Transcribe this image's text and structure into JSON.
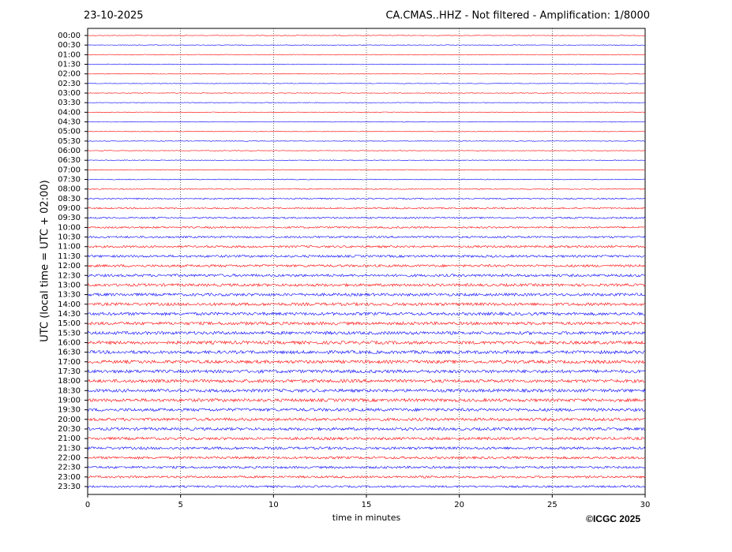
{
  "chart_data": {
    "type": "helicorder",
    "title": "23-10-2025",
    "subtitle": "CA.CMAS..HHZ - Not filtered - Amplification: 1/8000",
    "y_label": "UTC (local time = UTC + 02:00)",
    "x_label": "time in minutes",
    "credit": "©ICGC 2025",
    "categories": [
      "00:00",
      "00:30",
      "01:00",
      "01:30",
      "02:00",
      "02:30",
      "03:00",
      "03:30",
      "04:00",
      "04:30",
      "05:00",
      "05:30",
      "06:00",
      "06:30",
      "07:00",
      "07:30",
      "08:00",
      "08:30",
      "09:00",
      "09:30",
      "10:00",
      "10:30",
      "11:00",
      "11:30",
      "12:00",
      "12:30",
      "13:00",
      "13:30",
      "14:00",
      "14:30",
      "15:00",
      "15:30",
      "16:00",
      "16:30",
      "17:00",
      "17:30",
      "18:00",
      "18:30",
      "19:00",
      "19:30",
      "20:00",
      "20:30",
      "21:00",
      "21:30",
      "22:00",
      "22:30",
      "23:00",
      "23:30"
    ],
    "colors": [
      "#ff0000",
      "#0000ff"
    ],
    "xlim": [
      0,
      30
    ],
    "xticks": [
      0,
      5,
      10,
      15,
      20,
      25,
      30
    ],
    "grid": true
  }
}
